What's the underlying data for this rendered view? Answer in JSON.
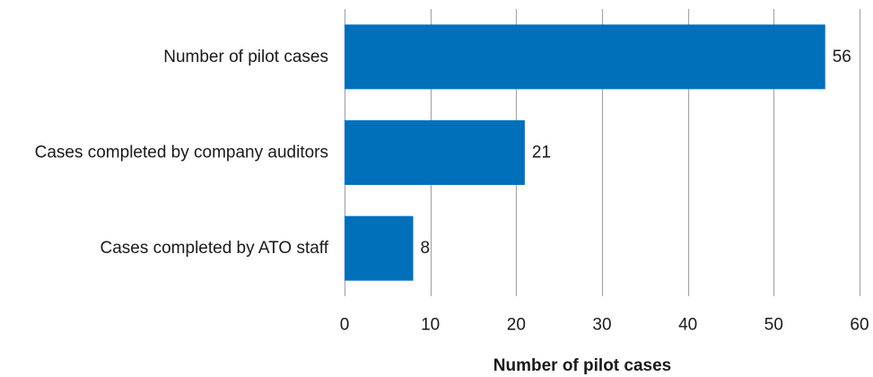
{
  "chart_data": {
    "type": "bar",
    "orientation": "horizontal",
    "categories": [
      "Number of pilot cases",
      "Cases completed by company auditors",
      "Cases completed by ATO staff"
    ],
    "values": [
      56,
      21,
      8
    ],
    "data_labels": [
      "56",
      "21",
      "8"
    ],
    "xlabel": "Number of pilot cases",
    "ylabel": "",
    "xlim": [
      0,
      60
    ],
    "xticks": [
      0,
      10,
      20,
      30,
      40,
      50,
      60
    ],
    "xtick_labels": [
      "0",
      "10",
      "20",
      "30",
      "40",
      "50",
      "60"
    ],
    "grid": "vertical",
    "legend": "none",
    "bar_color": "#0070BB",
    "grid_color": "#A6A6A6"
  }
}
